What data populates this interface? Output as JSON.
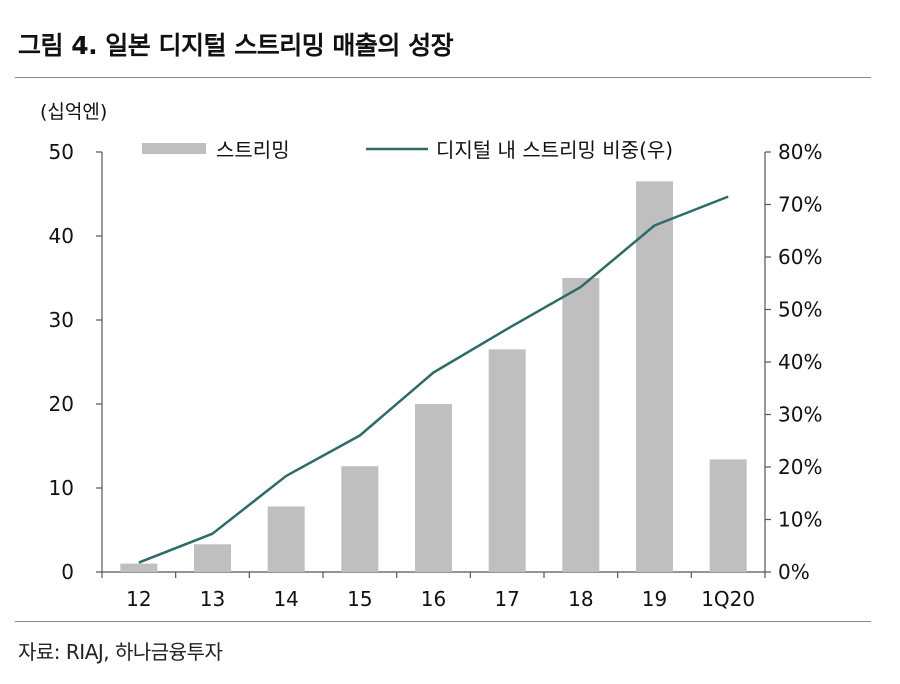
{
  "title": "그림 4. 일본 디지털 스트리밍 매출의 성장",
  "source": "자료: RIAJ, 하나금융투자",
  "colors": {
    "bar": "#bfbfbf",
    "line": "#2e6b68",
    "axis": "#555555",
    "rule": "#888888"
  },
  "chart_data": {
    "type": "bar",
    "categories": [
      "12",
      "13",
      "14",
      "15",
      "16",
      "17",
      "18",
      "19",
      "1Q20"
    ],
    "y_left_unit": "(십억엔)",
    "ylim": [
      0,
      50
    ],
    "yticks": [
      "0",
      "10",
      "20",
      "30",
      "40",
      "50"
    ],
    "y2lim": [
      0,
      80
    ],
    "y2ticks": [
      "0%",
      "10%",
      "20%",
      "30%",
      "40%",
      "50%",
      "60%",
      "70%",
      "80%"
    ],
    "legend_position": "top",
    "series": [
      {
        "name": "스트리밍",
        "type": "bar",
        "axis": "left",
        "values": [
          1.0,
          3.3,
          7.8,
          12.6,
          20.0,
          26.5,
          35.0,
          46.5,
          13.4
        ]
      },
      {
        "name": "디지털 내 스트리밍 비중(우)",
        "type": "line",
        "axis": "right",
        "values": [
          1.8,
          7.3,
          18.3,
          26.0,
          38.0,
          46.3,
          54.3,
          66.0,
          71.5
        ]
      }
    ]
  }
}
